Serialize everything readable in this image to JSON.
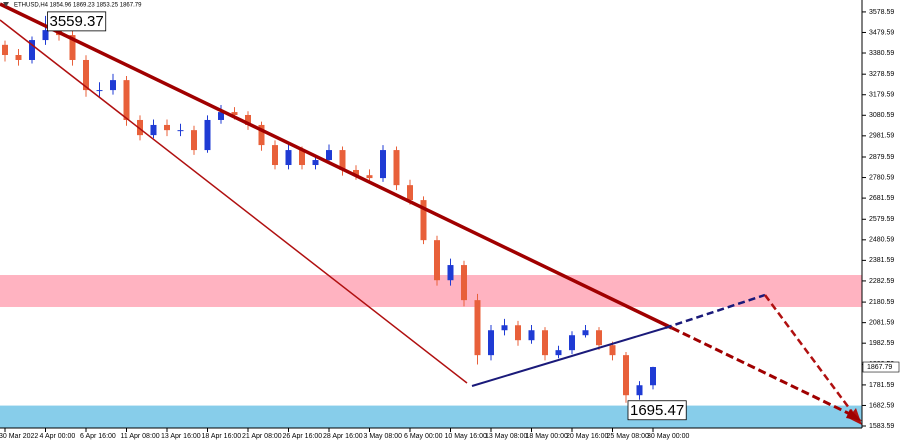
{
  "chart_data": {
    "type": "candlestick",
    "header": "ETHUSD,H4  1854.96 1869.23 1853.25 1867.79",
    "categories": [
      "30 Mar 2022",
      null,
      null,
      "4 Apr 00:00",
      null,
      null,
      "6 Apr 16:00",
      null,
      null,
      "11 Apr 08:00",
      null,
      null,
      "13 Apr 16:00",
      null,
      null,
      "18 Apr 16:00",
      null,
      null,
      "21 Apr 08:00",
      null,
      null,
      "26 Apr 16:00",
      null,
      null,
      "28 Apr 16:00",
      null,
      null,
      "3 May 08:00",
      null,
      null,
      "6 May 00:00",
      null,
      null,
      "10 May 16:00",
      null,
      null,
      "13 May 08:00",
      null,
      null,
      "18 May 00:00",
      null,
      null,
      "20 May 16:00",
      null,
      null,
      "25 May 08:00",
      null,
      null,
      "30 May 00:00"
    ],
    "open": [
      3420,
      3371,
      3347,
      3443,
      3491,
      3467,
      3347,
      3202,
      3202,
      3250,
      3058,
      2985,
      3034,
      3009,
      3009,
      2913,
      3058,
      3096,
      3082,
      3034,
      2937,
      2841,
      2913,
      2841,
      2865,
      2913,
      2817,
      2792,
      2778,
      2913,
      2744,
      2672,
      2479,
      2286,
      2359,
      2190,
      1925,
      2045,
      2069,
      1997,
      2045,
      1925,
      1949,
      2021,
      2045,
      1973,
      1925,
      1732,
      1780
    ],
    "high": [
      3440,
      3400,
      3460,
      3559.37,
      3520,
      3490,
      3370,
      3240,
      3280,
      3270,
      3080,
      3060,
      3060,
      3040,
      3030,
      3080,
      3130,
      3120,
      3100,
      3050,
      2960,
      2940,
      2930,
      2890,
      2940,
      2930,
      2840,
      2820,
      2937,
      2930,
      2770,
      2690,
      2500,
      2390,
      2380,
      2220,
      2070,
      2100,
      2090,
      2070,
      2060,
      1970,
      2040,
      2070,
      2060,
      1990,
      1940,
      1800,
      1869.23
    ],
    "low": [
      3340,
      3320,
      3330,
      3420,
      3440,
      3320,
      3170,
      3170,
      3180,
      3030,
      2960,
      2970,
      2980,
      2980,
      2890,
      2900,
      3040,
      3060,
      3010,
      2910,
      2820,
      2820,
      2820,
      2820,
      2850,
      2790,
      2770,
      2750,
      2760,
      2720,
      2650,
      2460,
      2260,
      2260,
      2160,
      1880,
      1900,
      2020,
      1970,
      1980,
      1900,
      1910,
      1930,
      2010,
      1950,
      1900,
      1695.47,
      1710,
      1760
    ],
    "close": [
      3371,
      3347,
      3443,
      3491,
      3467,
      3347,
      3202,
      3202,
      3250,
      3058,
      2985,
      3034,
      3009,
      3009,
      2913,
      3058,
      3096,
      3082,
      3034,
      2937,
      2841,
      2913,
      2841,
      2865,
      2913,
      2817,
      2792,
      2778,
      2913,
      2744,
      2672,
      2479,
      2286,
      2359,
      2190,
      1925,
      2045,
      2069,
      1997,
      2045,
      1925,
      1949,
      2021,
      2045,
      1973,
      1925,
      1732,
      1780,
      1867.79
    ],
    "up_color": "#1f3bd4",
    "down_color": "#e8603a",
    "ylim": [
      1574,
      3636
    ],
    "yticks": [
      3578.59,
      3479.59,
      3380.59,
      3278.59,
      3179.59,
      3080.59,
      2981.59,
      2879.59,
      2780.59,
      2681.59,
      2579.59,
      2480.59,
      2381.59,
      2282.59,
      2180.59,
      2081.59,
      1982.59,
      1880.59,
      1781.59,
      1682.59,
      1583.59
    ],
    "zones": [
      {
        "low": 2157,
        "high": 2311,
        "color": "#ffb3c1"
      },
      {
        "low": 1574,
        "high": 1682,
        "color": "#87cdea"
      }
    ],
    "annotations": [
      "3559.37",
      "1695.47"
    ]
  }
}
